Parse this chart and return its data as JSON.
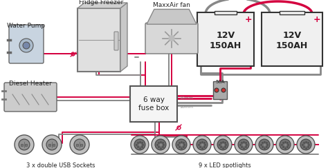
{
  "bg_color": "#ffffff",
  "wire_red": "#d4003f",
  "wire_gray": "#888888",
  "wire_dark": "#555555",
  "box_fill": "#f5f5f5",
  "box_edge": "#555555",
  "battery_fill": "#f0f0f0",
  "battery_edge": "#333333",
  "text_color": "#222222",
  "label_fontsize": 6.5,
  "fig_width": 4.74,
  "fig_height": 2.44,
  "dpi": 100,
  "labels": {
    "water_pump": "Water Pump",
    "fridge": "Fridge Freezer",
    "fan": "MaxxAir fan",
    "heater": "Diesel Heater",
    "fuse_box": "6 way\nfuse box",
    "battery1": "12V\n150AH",
    "battery2": "12V\n150AH",
    "breaker": "50A",
    "usb": "3 x double USB Sockets",
    "led": "9 x LED spotlights"
  }
}
